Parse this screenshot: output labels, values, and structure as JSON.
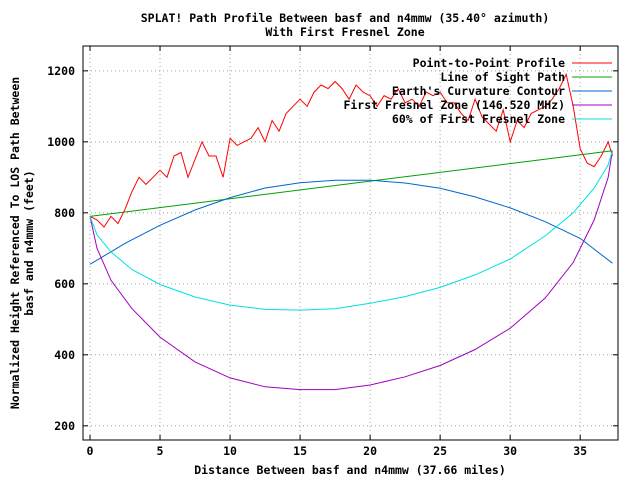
{
  "chart_data": {
    "type": "line",
    "title": "SPLAT! Path Profile Between basf and n4mmw (35.40° azimuth)",
    "subtitle": "With First Fresnel Zone",
    "xlabel": "Distance Between basf and n4mmw (37.66 miles)",
    "ylabel_lines": [
      "Normalized Height Referenced To LOS Path Between",
      "basf and n4mmw (feet)"
    ],
    "xlim": [
      -0.5,
      37.7
    ],
    "ylim": [
      160,
      1270
    ],
    "x_ticks": [
      0,
      5,
      10,
      15,
      20,
      25,
      30,
      35
    ],
    "y_ticks": [
      200,
      400,
      600,
      800,
      1000,
      1200
    ],
    "grid": true,
    "legend_position": "top-right",
    "series": [
      {
        "name": "Point-to-Point Profile",
        "color": "#ff0000",
        "x": [
          0,
          0.5,
          1,
          1.5,
          2,
          2.5,
          3,
          3.5,
          4,
          4.5,
          5,
          5.5,
          6,
          6.5,
          7,
          7.5,
          8,
          8.5,
          9,
          9.5,
          10,
          10.5,
          11,
          11.5,
          12,
          12.5,
          13,
          13.5,
          14,
          14.5,
          15,
          15.5,
          16,
          16.5,
          17,
          17.5,
          18,
          18.5,
          19,
          19.5,
          20,
          20.5,
          21,
          21.5,
          22,
          22.5,
          23,
          23.5,
          24,
          24.5,
          25,
          25.5,
          26,
          26.5,
          27,
          27.5,
          28,
          28.5,
          29,
          29.5,
          30,
          30.5,
          31,
          31.5,
          32,
          32.5,
          33,
          33.5,
          34,
          34.5,
          35,
          35.5,
          36,
          36.5,
          37,
          37.3
        ],
        "values": [
          790,
          780,
          760,
          790,
          770,
          810,
          860,
          900,
          880,
          900,
          920,
          900,
          960,
          970,
          900,
          950,
          1000,
          960,
          960,
          900,
          1010,
          990,
          1000,
          1010,
          1040,
          1000,
          1060,
          1030,
          1080,
          1100,
          1120,
          1100,
          1140,
          1160,
          1150,
          1170,
          1150,
          1120,
          1160,
          1140,
          1130,
          1100,
          1130,
          1120,
          1150,
          1110,
          1120,
          1100,
          1140,
          1130,
          1140,
          1110,
          1110,
          1080,
          1060,
          1120,
          1070,
          1050,
          1030,
          1090,
          1000,
          1060,
          1040,
          1080,
          1090,
          1100,
          1120,
          1150,
          1190,
          1100,
          980,
          940,
          930,
          960,
          1000,
          960
        ]
      },
      {
        "name": "Line of Sight Path",
        "color": "#00a000",
        "x": [
          0,
          37.3
        ],
        "values": [
          790,
          975
        ]
      },
      {
        "name": "Earth's Curvature Contour",
        "color": "#0066cc",
        "x": [
          0,
          2.5,
          5,
          7.5,
          10,
          12.5,
          15,
          17.5,
          20,
          22.5,
          25,
          27.5,
          30,
          32.5,
          35,
          37.3
        ],
        "values": [
          655,
          714,
          765,
          808,
          843,
          870,
          885,
          892,
          892,
          884,
          869,
          845,
          814,
          775,
          728,
          658
        ]
      },
      {
        "name": "First Fresnel Zone (146.520 MHz)",
        "color": "#a000c0",
        "x": [
          0,
          0.5,
          1.5,
          3,
          5,
          7.5,
          10,
          12.5,
          15,
          17.5,
          20,
          22.5,
          25,
          27.5,
          30,
          32.5,
          34.5,
          36,
          37,
          37.3
        ],
        "values": [
          790,
          700,
          610,
          530,
          450,
          380,
          335,
          310,
          302,
          302,
          315,
          338,
          370,
          415,
          475,
          560,
          660,
          780,
          900,
          975
        ]
      },
      {
        "name": "60% of First Fresnel Zone",
        "color": "#00e0e0",
        "x": [
          0,
          0.5,
          1.5,
          3,
          5,
          7.5,
          10,
          12.5,
          15,
          17.5,
          20,
          22.5,
          25,
          27.5,
          30,
          32.5,
          34.5,
          36,
          37,
          37.3
        ],
        "values": [
          790,
          738,
          690,
          640,
          598,
          563,
          540,
          528,
          526,
          530,
          545,
          564,
          590,
          625,
          670,
          735,
          800,
          870,
          935,
          975
        ]
      }
    ]
  }
}
